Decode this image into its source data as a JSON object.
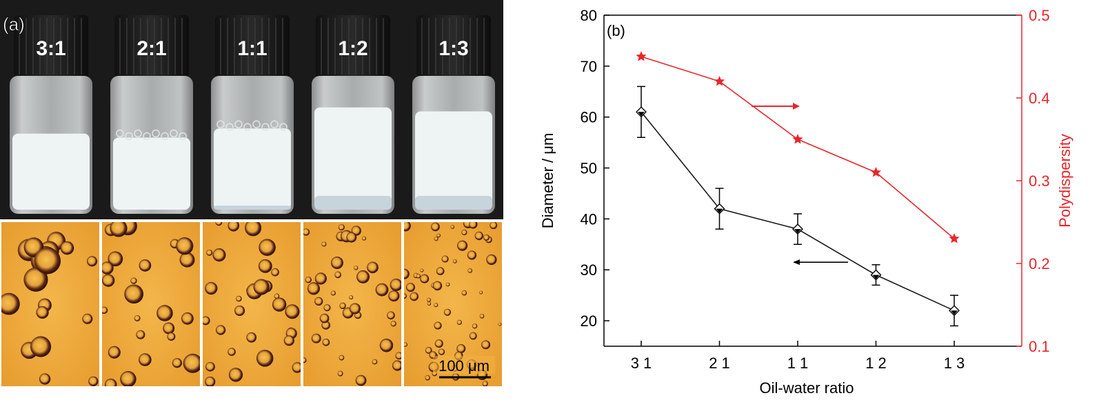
{
  "panel_a": {
    "label": "(a)",
    "vials": [
      {
        "ratio": "3:1",
        "emulsion_level": 0.58,
        "drop_scale": 1.6
      },
      {
        "ratio": "2:1",
        "emulsion_level": 0.55,
        "drop_scale": 1.1
      },
      {
        "ratio": "1:1",
        "emulsion_level": 0.62,
        "drop_scale": 0.95
      },
      {
        "ratio": "1:2",
        "emulsion_level": 0.78,
        "drop_scale": 0.75
      },
      {
        "ratio": "1:3",
        "emulsion_level": 0.75,
        "drop_scale": 0.6
      }
    ],
    "scale_bar_label": "100 μm"
  },
  "panel_b": {
    "label": "(b)"
  },
  "chart_data": {
    "type": "line",
    "categories": [
      "3 1",
      "2 1",
      "1 1",
      "1 2",
      "1 3"
    ],
    "xlabel": "Oil-water ratio",
    "ylabel_left": "Diameter / μm",
    "ylabel_right": "Polydispersity",
    "ylim_left": [
      15,
      80
    ],
    "ylim_right": [
      0.1,
      0.5
    ],
    "yticks_left": [
      20,
      30,
      40,
      50,
      60,
      70,
      80
    ],
    "yticks_right": [
      0.1,
      0.2,
      0.3,
      0.4,
      0.5
    ],
    "series": [
      {
        "axis": "left",
        "color": "#1a1a1a",
        "values": [
          61,
          42,
          38,
          29,
          22
        ],
        "errors": [
          5,
          4,
          3,
          2,
          3
        ]
      },
      {
        "axis": "right",
        "color": "#e8262b",
        "values": [
          0.45,
          0.42,
          0.35,
          0.31,
          0.23
        ]
      }
    ],
    "grid": false
  }
}
